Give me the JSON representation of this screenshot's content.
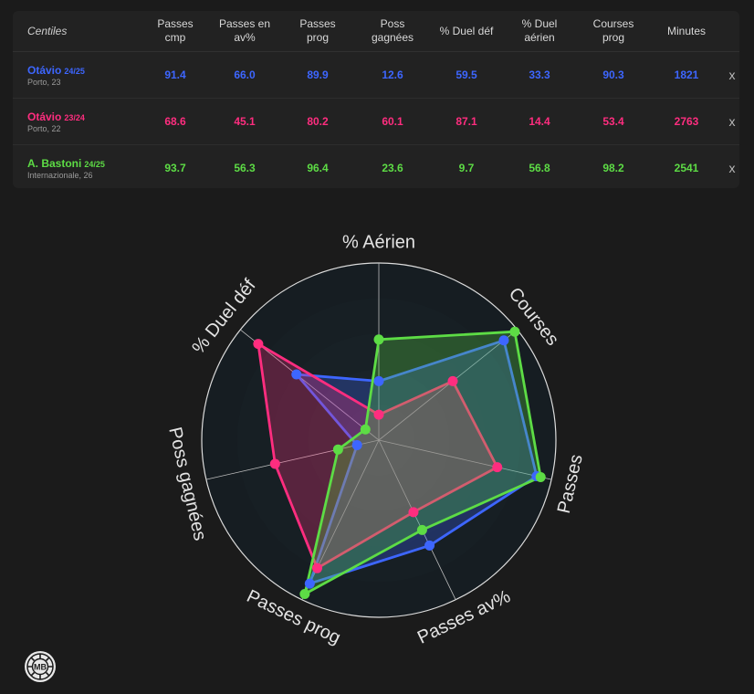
{
  "table": {
    "header_label": "Centiles",
    "columns": [
      "Passes\ncmp",
      "Passes en\nav%",
      "Passes\nprog",
      "Poss\ngagnées",
      "% Duel déf",
      "% Duel\naérien",
      "Courses\nprog",
      "Minutes"
    ],
    "remove_label": "x",
    "rows": [
      {
        "name": "Otávio",
        "season": "24/25",
        "team": "Porto, 23",
        "color": "#3d66ff",
        "values": [
          "91.4",
          "66.0",
          "89.9",
          "12.6",
          "59.5",
          "33.3",
          "90.3",
          "1821"
        ]
      },
      {
        "name": "Otávio",
        "season": "23/24",
        "team": "Porto, 22",
        "color": "#ff2d7f",
        "values": [
          "68.6",
          "45.1",
          "80.2",
          "60.1",
          "87.1",
          "14.4",
          "53.4",
          "2763"
        ]
      },
      {
        "name": "A. Bastoni",
        "season": "24/25",
        "team": "Internazionale, 26",
        "color": "#5ddc45",
        "values": [
          "93.7",
          "56.3",
          "96.4",
          "23.6",
          "9.7",
          "56.8",
          "98.2",
          "2541"
        ]
      }
    ]
  },
  "chart_data": {
    "type": "radar",
    "axes": [
      "% Aérien",
      "Courses",
      "Passes",
      "Passes av%",
      "Passes prog",
      "Poss gagnées",
      "% Duel déf"
    ],
    "range": [
      0,
      100
    ],
    "series": [
      {
        "color": "#3d66ff",
        "values": [
          33.3,
          90.3,
          91.4,
          66.0,
          89.9,
          12.6,
          59.5
        ]
      },
      {
        "color": "#ff2d7f",
        "values": [
          14.4,
          53.4,
          68.6,
          45.1,
          80.2,
          60.1,
          87.1
        ]
      },
      {
        "color": "#5ddc45",
        "values": [
          56.8,
          98.2,
          93.7,
          56.3,
          96.4,
          23.6,
          9.7
        ]
      }
    ]
  },
  "logo": {
    "text": "MB"
  }
}
